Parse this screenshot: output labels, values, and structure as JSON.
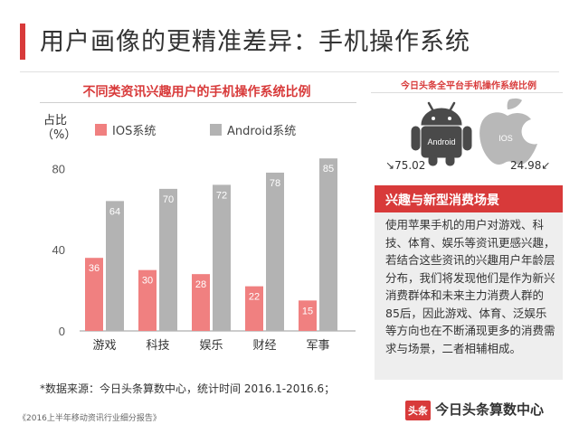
{
  "header": {
    "title": "用户画像的更精准差异：手机操作系统"
  },
  "chart_data": {
    "type": "bar",
    "title": "不同类资讯兴趣用户的手机操作系统比例",
    "ylabel": "占比（%）",
    "ylabel_lines": [
      "占比",
      "（%）"
    ],
    "xlabel": "",
    "categories": [
      "游戏",
      "科技",
      "娱乐",
      "财经",
      "军事"
    ],
    "series": [
      {
        "name": "IOS系统",
        "color": "#f08080",
        "values": [
          36,
          30,
          28,
          22,
          15
        ]
      },
      {
        "name": "Android系统",
        "color": "#b3b3b3",
        "values": [
          64,
          70,
          72,
          78,
          85
        ]
      }
    ],
    "yticks": [
      "0",
      "40",
      "80"
    ],
    "ylim": [
      0,
      90
    ],
    "grid": false,
    "legend": "top-left"
  },
  "share": {
    "title": "今日头条全平台手机操作系统比例",
    "android_label": "Android",
    "ios_label": "IOS",
    "android_value": "75.02",
    "ios_value": "24.98",
    "android_color": "#4a4a4a",
    "ios_color": "#b8b8b8"
  },
  "note": {
    "title": "兴趣与新型消费场景",
    "body": "使用苹果手机的用户对游戏、科技、体育、娱乐等资讯更感兴趣，若结合这些资讯的兴趣用户年龄层分布，我们将发现他们是作为新兴消费群体和未来主力消费人群的85后，因此游戏、体育、泛娱乐等方向也在不断涌现更多的消费需求与场景，二者相辅相成。"
  },
  "source": "*数据来源：今日头条算数中心，统计时间 2016.1-2016.6；",
  "report": "《2016上半年移动资讯行业细分报告》",
  "logo": {
    "badge": "头条",
    "text": "今日头条算数中心",
    "accent": "#d83a3a"
  }
}
